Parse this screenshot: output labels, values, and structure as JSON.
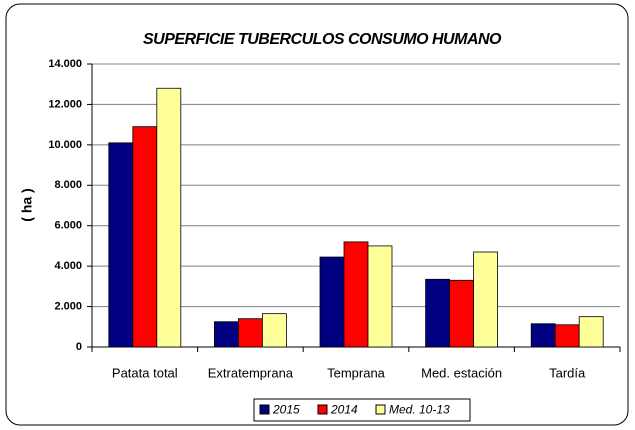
{
  "chart_data": {
    "type": "bar",
    "title": "SUPERFICIE TUBERCULOS CONSUMO HUMANO",
    "y_label": "( ha )",
    "categories": [
      "Patata total",
      "Extratemprana",
      "Temprana",
      "Med. estación",
      "Tardía"
    ],
    "series": [
      {
        "name": "2015",
        "color": "#000080",
        "values": [
          10100,
          1250,
          4450,
          3350,
          1150
        ]
      },
      {
        "name": "2014",
        "color": "#ff0000",
        "values": [
          10900,
          1400,
          5200,
          3300,
          1100
        ]
      },
      {
        "name": "Med. 10-13",
        "color": "#ffff99",
        "values": [
          12800,
          1650,
          5000,
          4700,
          1500
        ]
      }
    ],
    "ylim": [
      0,
      14000
    ],
    "yticks": [
      0,
      {
        "value": 2000,
        "label": "2.000"
      },
      {
        "value": 4000,
        "label": "4.000"
      },
      {
        "value": 6000,
        "label": "6.000"
      },
      {
        "value": 8000,
        "label": "8.000"
      },
      {
        "value": 10000,
        "label": "10.000"
      },
      {
        "value": 12000,
        "label": "12.000"
      },
      {
        "value": 14000,
        "label": "14.000"
      }
    ],
    "grid": true,
    "legend": "bottom"
  }
}
